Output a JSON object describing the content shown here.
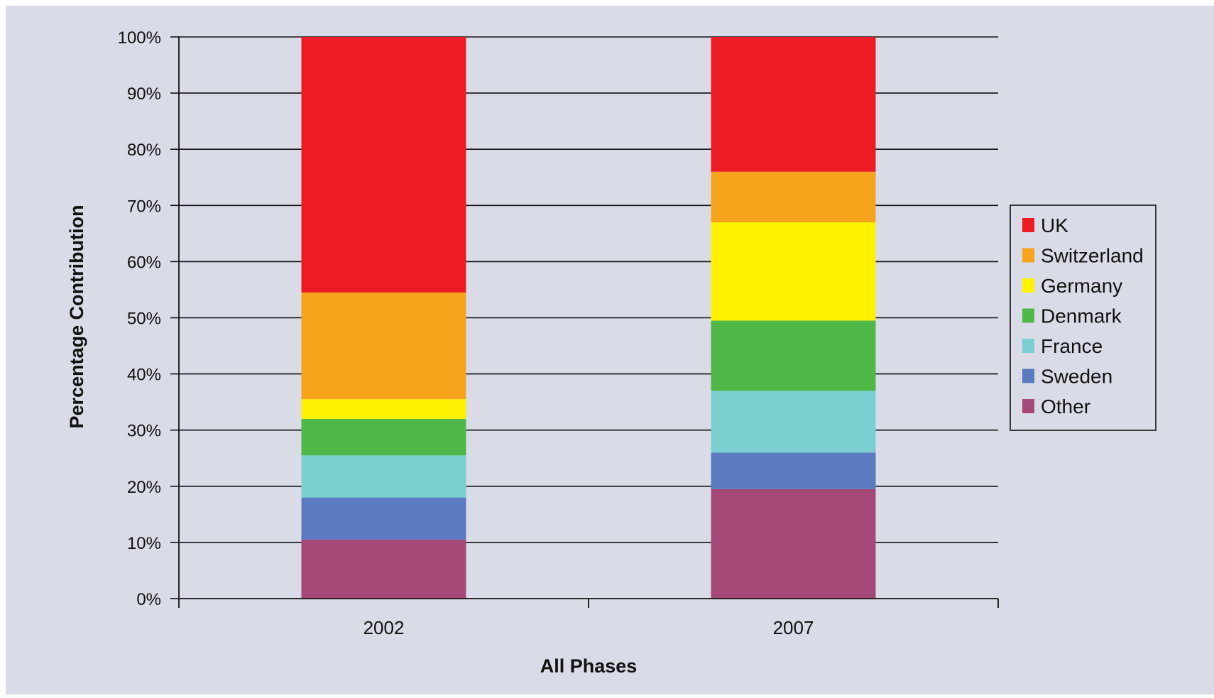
{
  "chart_data": {
    "type": "bar",
    "stacked": true,
    "categories": [
      "2002",
      "2007"
    ],
    "xlabel": "All Phases",
    "ylabel": "Percentage Contribution",
    "ylim": [
      0,
      100
    ],
    "y_tick_labels": [
      "0%",
      "10%",
      "20%",
      "30%",
      "40%",
      "50%",
      "60%",
      "70%",
      "80%",
      "90%",
      "100%"
    ],
    "grid": true,
    "legend_position": "right",
    "series": [
      {
        "name": "Other",
        "color": "#A54A78",
        "values": [
          10.5,
          19.5
        ]
      },
      {
        "name": "Sweden",
        "color": "#5A7BC0",
        "values": [
          7.5,
          6.5
        ]
      },
      {
        "name": "France",
        "color": "#7BCFD0",
        "values": [
          7.5,
          11
        ]
      },
      {
        "name": "Denmark",
        "color": "#50B848",
        "values": [
          6.5,
          12.5
        ]
      },
      {
        "name": "Germany",
        "color": "#FFF200",
        "values": [
          3.5,
          17.5
        ]
      },
      {
        "name": "Switzerland",
        "color": "#F7A41C",
        "values": [
          19,
          9
        ]
      },
      {
        "name": "UK",
        "color": "#ED1C24",
        "values": [
          45.5,
          24
        ]
      }
    ],
    "legend_order": [
      "UK",
      "Switzerland",
      "Germany",
      "Denmark",
      "France",
      "Sweden",
      "Other"
    ]
  },
  "colors": {
    "background": "#D9DCE7"
  }
}
